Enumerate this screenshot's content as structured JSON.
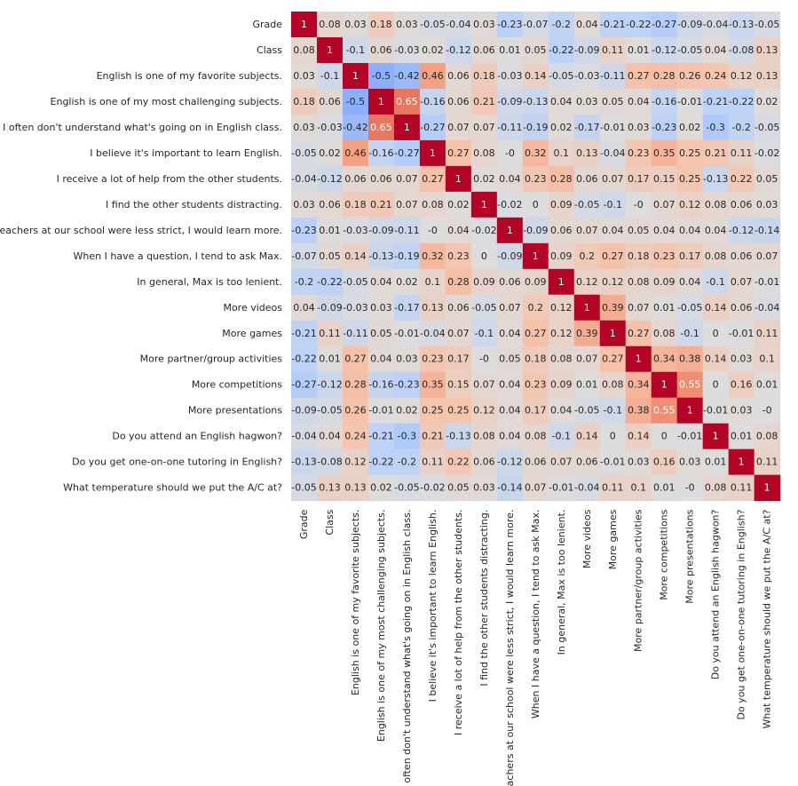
{
  "chart_data": {
    "type": "heatmap",
    "title": "",
    "colormap": "coolwarm",
    "vmin": -1,
    "vmax": 1,
    "colorbar": false,
    "annotate": true,
    "labels": [
      "Grade",
      "Class",
      "English is one of my favorite subjects.",
      "English is one of my most challenging subjects.",
      "I often don't understand what's going on in English class.",
      "I believe it's important to learn English.",
      "I receive a lot of help from the other students.",
      "I find the other students distracting.",
      "If the teachers at our school were less strict, I would learn more.",
      "When I have a question, I tend to ask Max.",
      "In general, Max is too lenient.",
      "More videos",
      "More games",
      "More partner/group activities",
      "More competitions",
      "More presentations",
      "Do you attend an English hagwon?",
      "Do you get one-on-one tutoring in English?",
      "What temperature should we put the A/C at?"
    ],
    "matrix": [
      [
        "1",
        "0.08",
        "0.03",
        "0.18",
        "0.03",
        "-0.05",
        "-0.04",
        "0.03",
        "-0.23",
        "-0.07",
        "-0.2",
        "0.04",
        "-0.21",
        "-0.22",
        "-0.27",
        "-0.09",
        "-0.04",
        "-0.13",
        "-0.05"
      ],
      [
        "0.08",
        "1",
        "-0.1",
        "0.06",
        "-0.03",
        "0.02",
        "-0.12",
        "0.06",
        "0.01",
        "0.05",
        "-0.22",
        "-0.09",
        "0.11",
        "0.01",
        "-0.12",
        "-0.05",
        "0.04",
        "-0.08",
        "0.13"
      ],
      [
        "0.03",
        "-0.1",
        "1",
        "-0.5",
        "-0.42",
        "0.46",
        "0.06",
        "0.18",
        "-0.03",
        "0.14",
        "-0.05",
        "-0.03",
        "-0.11",
        "0.27",
        "0.28",
        "0.26",
        "0.24",
        "0.12",
        "0.13"
      ],
      [
        "0.18",
        "0.06",
        "-0.5",
        "1",
        "0.65",
        "-0.16",
        "0.06",
        "0.21",
        "-0.09",
        "-0.13",
        "0.04",
        "0.03",
        "0.05",
        "0.04",
        "-0.16",
        "-0.01",
        "-0.21",
        "-0.22",
        "0.02"
      ],
      [
        "0.03",
        "-0.03",
        "-0.42",
        "0.65",
        "1",
        "-0.27",
        "0.07",
        "0.07",
        "-0.11",
        "-0.19",
        "0.02",
        "-0.17",
        "-0.01",
        "0.03",
        "-0.23",
        "0.02",
        "-0.3",
        "-0.2",
        "-0.05"
      ],
      [
        "-0.05",
        "0.02",
        "0.46",
        "-0.16",
        "-0.27",
        "1",
        "0.27",
        "0.08",
        "-0",
        "0.32",
        "0.1",
        "0.13",
        "-0.04",
        "0.23",
        "0.35",
        "0.25",
        "0.21",
        "0.11",
        "-0.02"
      ],
      [
        "-0.04",
        "-0.12",
        "0.06",
        "0.06",
        "0.07",
        "0.27",
        "1",
        "0.02",
        "0.04",
        "0.23",
        "0.28",
        "0.06",
        "0.07",
        "0.17",
        "0.15",
        "0.25",
        "-0.13",
        "0.22",
        "0.05"
      ],
      [
        "0.03",
        "0.06",
        "0.18",
        "0.21",
        "0.07",
        "0.08",
        "0.02",
        "1",
        "-0.02",
        "0",
        "0.09",
        "-0.05",
        "-0.1",
        "-0",
        "0.07",
        "0.12",
        "0.08",
        "0.06",
        "0.03"
      ],
      [
        "-0.23",
        "0.01",
        "-0.03",
        "-0.09",
        "-0.11",
        "-0",
        "0.04",
        "-0.02",
        "1",
        "-0.09",
        "0.06",
        "0.07",
        "0.04",
        "0.05",
        "0.04",
        "0.04",
        "0.04",
        "-0.12",
        "-0.14"
      ],
      [
        "-0.07",
        "0.05",
        "0.14",
        "-0.13",
        "-0.19",
        "0.32",
        "0.23",
        "0",
        "-0.09",
        "1",
        "0.09",
        "0.2",
        "0.27",
        "0.18",
        "0.23",
        "0.17",
        "0.08",
        "0.06",
        "0.07"
      ],
      [
        "-0.2",
        "-0.22",
        "-0.05",
        "0.04",
        "0.02",
        "0.1",
        "0.28",
        "0.09",
        "0.06",
        "0.09",
        "1",
        "0.12",
        "0.12",
        "0.08",
        "0.09",
        "0.04",
        "-0.1",
        "0.07",
        "-0.01"
      ],
      [
        "0.04",
        "-0.09",
        "-0.03",
        "0.03",
        "-0.17",
        "0.13",
        "0.06",
        "-0.05",
        "0.07",
        "0.2",
        "0.12",
        "1",
        "0.39",
        "0.07",
        "0.01",
        "-0.05",
        "0.14",
        "0.06",
        "-0.04"
      ],
      [
        "-0.21",
        "0.11",
        "-0.11",
        "0.05",
        "-0.01",
        "-0.04",
        "0.07",
        "-0.1",
        "0.04",
        "0.27",
        "0.12",
        "0.39",
        "1",
        "0.27",
        "0.08",
        "-0.1",
        "0",
        "-0.01",
        "0.11"
      ],
      [
        "-0.22",
        "0.01",
        "0.27",
        "0.04",
        "0.03",
        "0.23",
        "0.17",
        "-0",
        "0.05",
        "0.18",
        "0.08",
        "0.07",
        "0.27",
        "1",
        "0.34",
        "0.38",
        "0.14",
        "0.03",
        "0.1"
      ],
      [
        "-0.27",
        "-0.12",
        "0.28",
        "-0.16",
        "-0.23",
        "0.35",
        "0.15",
        "0.07",
        "0.04",
        "0.23",
        "0.09",
        "0.01",
        "0.08",
        "0.34",
        "1",
        "0.55",
        "0",
        "0.16",
        "0.01"
      ],
      [
        "-0.09",
        "-0.05",
        "0.26",
        "-0.01",
        "0.02",
        "0.25",
        "0.25",
        "0.12",
        "0.04",
        "0.17",
        "0.04",
        "-0.05",
        "-0.1",
        "0.38",
        "0.55",
        "1",
        "-0.01",
        "0.03",
        "-0"
      ],
      [
        "-0.04",
        "0.04",
        "0.24",
        "-0.21",
        "-0.3",
        "0.21",
        "-0.13",
        "0.08",
        "0.04",
        "0.08",
        "-0.1",
        "0.14",
        "0",
        "0.14",
        "0",
        "-0.01",
        "1",
        "0.01",
        "0.08"
      ],
      [
        "-0.13",
        "-0.08",
        "0.12",
        "-0.22",
        "-0.2",
        "0.11",
        "0.22",
        "0.06",
        "-0.12",
        "0.06",
        "0.07",
        "0.06",
        "-0.01",
        "0.03",
        "0.16",
        "0.03",
        "0.01",
        "1",
        "0.11"
      ],
      [
        "-0.05",
        "0.13",
        "0.13",
        "0.02",
        "-0.05",
        "-0.02",
        "0.05",
        "0.03",
        "-0.14",
        "0.07",
        "-0.01",
        "-0.04",
        "0.11",
        "0.1",
        "0.01",
        "-0",
        "0.08",
        "0.11",
        "1"
      ]
    ]
  }
}
